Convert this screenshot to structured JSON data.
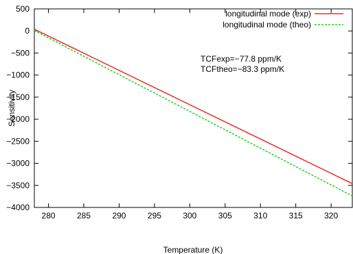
{
  "chart_data": {
    "type": "line",
    "title": "",
    "xlabel": "Temperature (K)",
    "ylabel": "Sensitivity",
    "xlim": [
      278,
      323
    ],
    "ylim": [
      -4000,
      500
    ],
    "x_ticks": [
      280,
      285,
      290,
      295,
      300,
      305,
      310,
      315,
      320
    ],
    "y_ticks": [
      500,
      0,
      -500,
      -1000,
      -1500,
      -2000,
      -2500,
      -3000,
      -3500,
      -4000
    ],
    "grid": false,
    "legend_position": "top-right",
    "series": [
      {
        "name": "longitudinal mode (exp)",
        "color": "#e8302a",
        "style": "solid",
        "x": [
          278,
          323
        ],
        "y": [
          40,
          -3460
        ]
      },
      {
        "name": "longitudinal mode (theo)",
        "color": "#22cc22",
        "style": "dashed",
        "x": [
          278,
          323
        ],
        "y": [
          10,
          -3740
        ]
      }
    ],
    "annotations": [
      "TCFexp=−77.8 ppm/K",
      "TCFtheo=−83.3 ppm/K"
    ]
  }
}
